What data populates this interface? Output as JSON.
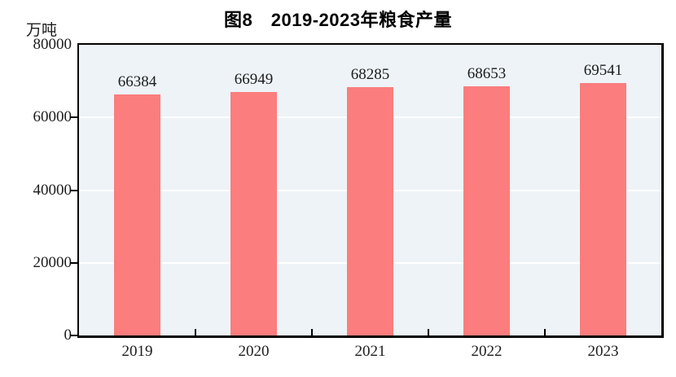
{
  "page": {
    "title": "图8　2019-2023年粮食产量"
  },
  "colors": {
    "bar": "#fb7d7d",
    "plot_bg": "#edf3f7",
    "gridline": "#ffffff",
    "axis": "#000000",
    "text": "#1c1c1c"
  },
  "chart_data": {
    "type": "bar",
    "title": "图8　2019-2023年粮食产量",
    "categories": [
      "2019",
      "2020",
      "2021",
      "2022",
      "2023"
    ],
    "values": [
      66384,
      66949,
      68285,
      68653,
      69541
    ],
    "data_labels": [
      "66384",
      "66949",
      "68285",
      "68653",
      "69541"
    ],
    "xlabel": "",
    "ylabel": "万吨",
    "ylim": [
      0,
      80000
    ],
    "yticks": [
      0,
      20000,
      40000,
      60000,
      80000
    ],
    "gridline_values": [
      20000,
      40000,
      60000
    ],
    "grid": true,
    "legend_position": "none",
    "data_labels_shown": true
  }
}
